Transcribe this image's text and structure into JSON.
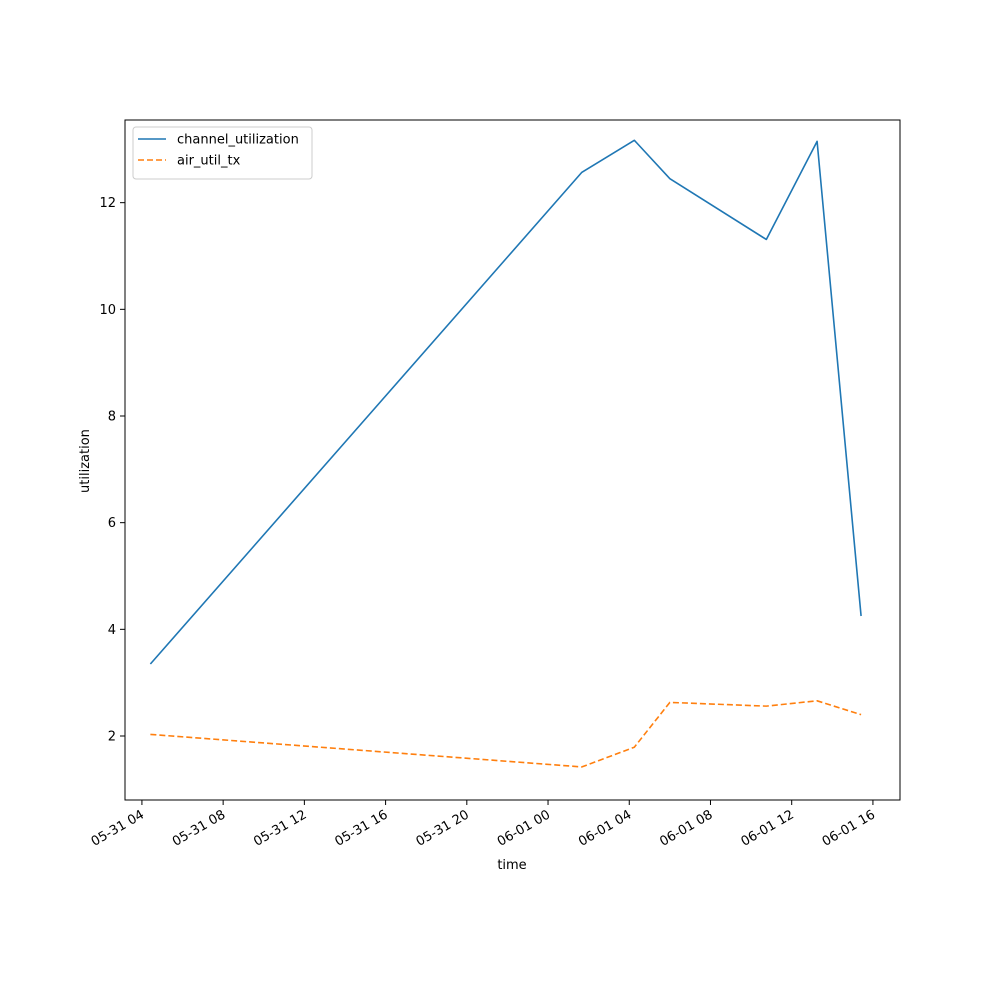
{
  "chart_data": {
    "type": "line",
    "title": "",
    "xlabel": "time",
    "ylabel": "utilization",
    "xlim": [
      "2024-05-31 03:10",
      "2024-06-01 17:20"
    ],
    "ylim": [
      0.8,
      13.55
    ],
    "x_ticks": [
      {
        "t": "2024-05-31 04:00",
        "label": "05-31 04"
      },
      {
        "t": "2024-05-31 08:00",
        "label": "05-31 08"
      },
      {
        "t": "2024-05-31 12:00",
        "label": "05-31 12"
      },
      {
        "t": "2024-05-31 16:00",
        "label": "05-31 16"
      },
      {
        "t": "2024-05-31 20:00",
        "label": "05-31 20"
      },
      {
        "t": "2024-06-01 00:00",
        "label": "06-01 00"
      },
      {
        "t": "2024-06-01 04:00",
        "label": "06-01 04"
      },
      {
        "t": "2024-06-01 08:00",
        "label": "06-01 08"
      },
      {
        "t": "2024-06-01 12:00",
        "label": "06-01 12"
      },
      {
        "t": "2024-06-01 16:00",
        "label": "06-01 16"
      }
    ],
    "y_ticks": [
      2,
      4,
      6,
      8,
      10,
      12
    ],
    "grid": false,
    "legend_position": "upper-left",
    "series": [
      {
        "name": "channel_utilization",
        "color": "#1f77b4",
        "style": "solid",
        "points": [
          {
            "t": "2024-05-31 04:25",
            "y": 3.35
          },
          {
            "t": "2024-06-01 01:40",
            "y": 12.57
          },
          {
            "t": "2024-06-01 04:15",
            "y": 13.17
          },
          {
            "t": "2024-06-01 06:00",
            "y": 12.45
          },
          {
            "t": "2024-06-01 10:45",
            "y": 11.31
          },
          {
            "t": "2024-06-01 13:15",
            "y": 13.15
          },
          {
            "t": "2024-06-01 15:25",
            "y": 4.25
          }
        ]
      },
      {
        "name": "air_util_tx",
        "color": "#ff7f0e",
        "style": "dashed",
        "points": [
          {
            "t": "2024-05-31 04:25",
            "y": 2.03
          },
          {
            "t": "2024-06-01 01:40",
            "y": 1.42
          },
          {
            "t": "2024-06-01 04:15",
            "y": 1.79
          },
          {
            "t": "2024-06-01 06:00",
            "y": 2.63
          },
          {
            "t": "2024-06-01 10:45",
            "y": 2.56
          },
          {
            "t": "2024-06-01 13:15",
            "y": 2.66
          },
          {
            "t": "2024-06-01 15:25",
            "y": 2.4
          }
        ]
      }
    ]
  }
}
